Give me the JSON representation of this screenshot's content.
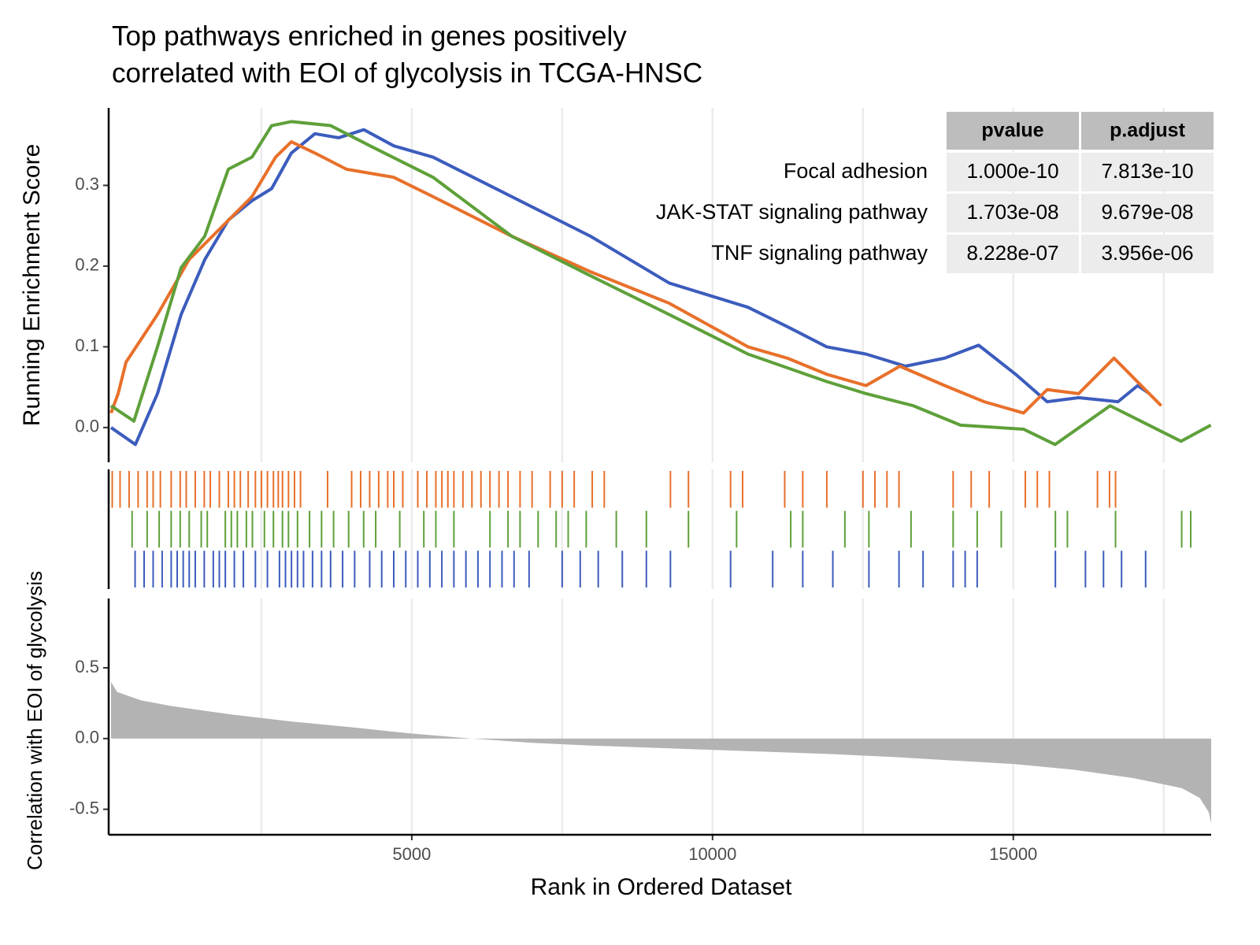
{
  "chart_data": [
    {
      "type": "line",
      "title": [
        "Top pathways enriched in genes positively",
        "correlated with EOI of glycolysis in TCGA-HNSC"
      ],
      "ylabel": "Running Enrichment Score",
      "xlim": [
        0,
        18290
      ],
      "ylim": [
        -0.043,
        0.396
      ],
      "yticks": [
        {
          "value": 0,
          "label": "0.0"
        },
        0.1,
        0.2,
        0.3
      ],
      "x_minor_grid": [
        2500,
        5000,
        7500,
        10000,
        12500,
        15000,
        17500
      ],
      "series": [
        {
          "name": "Focal adhesion",
          "color": "#3c5cbd",
          "x": [
            0,
            405,
            772,
            1165,
            1558,
            1950,
            2343,
            2670,
            2997,
            3390,
            3783,
            4202,
            4700,
            5353,
            6662,
            7971,
            9280,
            10589,
            11243,
            11898,
            12552,
            13207,
            13861,
            14424,
            15039,
            15563,
            16086,
            16741,
            17068,
            17264
          ],
          "values": [
            0,
            -0.021,
            0.042,
            0.14,
            0.208,
            0.257,
            0.281,
            0.296,
            0.34,
            0.364,
            0.359,
            0.369,
            0.349,
            0.335,
            0.286,
            0.237,
            0.179,
            0.149,
            0.125,
            0.1,
            0.091,
            0.076,
            0.086,
            0.102,
            0.066,
            0.032,
            0.037,
            0.032,
            0.052,
            0.042
          ]
        },
        {
          "name": "JAK-STAT signaling pathway",
          "color": "#e8702a",
          "x": [
            0,
            118,
            249,
            772,
            1296,
            1819,
            2343,
            2736,
            2997,
            3390,
            3914,
            4699,
            5354,
            6662,
            7971,
            9280,
            10589,
            11243,
            11898,
            12552,
            13115,
            13861,
            14516,
            15170,
            15563,
            16086,
            16675,
            17460
          ],
          "values": [
            0.018,
            0.042,
            0.081,
            0.14,
            0.208,
            0.247,
            0.286,
            0.335,
            0.354,
            0.34,
            0.32,
            0.31,
            0.286,
            0.237,
            0.193,
            0.154,
            0.1,
            0.086,
            0.066,
            0.052,
            0.076,
            0.052,
            0.032,
            0.018,
            0.047,
            0.042,
            0.086,
            0.027
          ]
        },
        {
          "name": "TNF signaling pathway",
          "color": "#5ea03a",
          "x": [
            0,
            380,
            772,
            1165,
            1558,
            1950,
            2343,
            2670,
            2997,
            3652,
            4306,
            5354,
            6662,
            7971,
            9280,
            10589,
            11898,
            12552,
            13338,
            14123,
            15170,
            15694,
            16610,
            17788,
            18285
          ],
          "values": [
            0.027,
            0.008,
            0.1,
            0.198,
            0.237,
            0.32,
            0.335,
            0.374,
            0.379,
            0.374,
            0.349,
            0.31,
            0.237,
            0.188,
            0.14,
            0.091,
            0.057,
            0.042,
            0.027,
            0.003,
            -0.002,
            -0.021,
            0.027,
            -0.017,
            0.003
          ]
        }
      ],
      "table": {
        "columns": [
          "pvalue",
          "p.adjust"
        ],
        "rows": [
          [
            "1.000e-10",
            "7.813e-10"
          ],
          [
            "1.703e-08",
            "9.679e-08"
          ],
          [
            "8.228e-07",
            "3.956e-06"
          ]
        ]
      }
    },
    {
      "type": "rug",
      "xlim": [
        0,
        18290
      ],
      "x_minor_grid": [
        2500,
        5000,
        7500,
        10000,
        12500,
        15000,
        17500
      ],
      "series": [
        {
          "color": "#e8702a",
          "x": [
            20,
            150,
            300,
            450,
            600,
            700,
            820,
            1000,
            1150,
            1250,
            1400,
            1550,
            1650,
            1800,
            1950,
            2050,
            2150,
            2280,
            2400,
            2500,
            2600,
            2700,
            2780,
            2850,
            2950,
            3050,
            3150,
            3600,
            4000,
            4150,
            4300,
            4450,
            4600,
            4700,
            4850,
            5100,
            5250,
            5400,
            5500,
            5600,
            5700,
            5850,
            6000,
            6150,
            6300,
            6450,
            6600,
            6800,
            7000,
            7300,
            7500,
            7700,
            8000,
            8200,
            9300,
            9600,
            10300,
            10500,
            11200,
            11500,
            11900,
            12500,
            12700,
            12900,
            13100,
            14000,
            14300,
            14600,
            15200,
            15400,
            15600,
            16400,
            16600,
            16700
          ]
        },
        {
          "color": "#5ea03a",
          "x": [
            350,
            600,
            800,
            1000,
            1150,
            1300,
            1500,
            1600,
            1900,
            2000,
            2100,
            2250,
            2350,
            2550,
            2700,
            2850,
            2950,
            3100,
            3300,
            3500,
            3700,
            3950,
            4200,
            4400,
            4800,
            5200,
            5400,
            5700,
            6300,
            6600,
            6800,
            7100,
            7400,
            7600,
            7900,
            8400,
            8900,
            9600,
            10400,
            11300,
            11500,
            12200,
            12600,
            13300,
            14000,
            14400,
            14800,
            15700,
            15900,
            16700,
            17800,
            17950
          ]
        },
        {
          "color": "#3c5cbd",
          "x": [
            400,
            550,
            700,
            850,
            1000,
            1100,
            1200,
            1300,
            1400,
            1550,
            1700,
            1800,
            1900,
            2050,
            2200,
            2400,
            2600,
            2800,
            2900,
            3000,
            3100,
            3200,
            3350,
            3500,
            3650,
            3850,
            4050,
            4300,
            4500,
            4700,
            4900,
            5100,
            5300,
            5500,
            5700,
            5900,
            6100,
            6300,
            6500,
            6700,
            6950,
            7500,
            7800,
            8100,
            8500,
            8900,
            9300,
            10300,
            11000,
            11500,
            12000,
            12600,
            13100,
            13500,
            14000,
            14200,
            14400,
            15700,
            16200,
            16500,
            16800,
            17200
          ]
        }
      ]
    },
    {
      "type": "area",
      "ylabel": "Correlation with EOI of glycolysis",
      "xlabel": "Rank in Ordered Dataset",
      "xlim": [
        0,
        18290
      ],
      "ylim": [
        -0.68,
        0.99
      ],
      "xticks": [
        5000,
        10000,
        15000
      ],
      "yticks": [
        -0.5,
        {
          "value": 0,
          "label": "0.0"
        },
        0.5
      ],
      "x_minor_grid": [
        2500,
        5000,
        7500,
        10000,
        12500,
        15000,
        17500
      ],
      "color": "#b3b3b3",
      "x": [
        0,
        100,
        500,
        1000,
        2000,
        3000,
        4000,
        5000,
        6000,
        7000,
        8000,
        9000,
        10000,
        11000,
        12000,
        13000,
        14000,
        15000,
        16000,
        17000,
        17800,
        18100,
        18250,
        18290
      ],
      "values": [
        0.4,
        0.33,
        0.27,
        0.23,
        0.17,
        0.12,
        0.08,
        0.035,
        0.0,
        -0.03,
        -0.05,
        -0.065,
        -0.08,
        -0.095,
        -0.11,
        -0.13,
        -0.155,
        -0.18,
        -0.22,
        -0.28,
        -0.35,
        -0.42,
        -0.52,
        -0.6
      ]
    }
  ]
}
